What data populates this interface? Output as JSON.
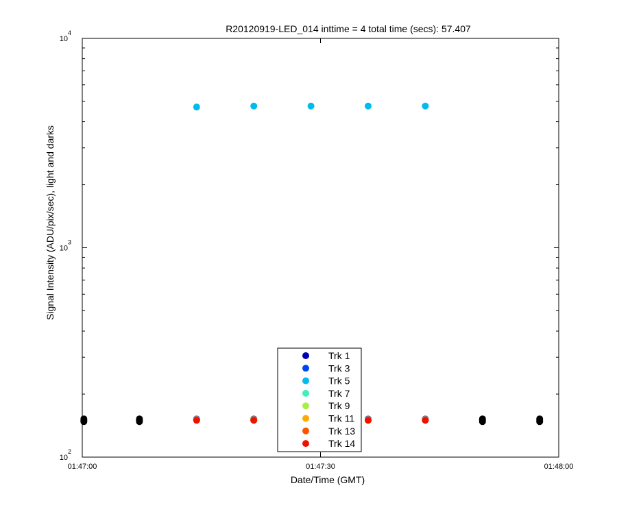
{
  "chart_data": {
    "type": "scatter",
    "title": "R20120919-LED_014 inttime = 4 total time (secs): 57.407",
    "xlabel": "Date/Time (GMT)",
    "ylabel": "Signal Intensity (ADU/pix/sec), light and darks",
    "xscale": "time",
    "yscale": "log",
    "xlim": [
      "01:47:00",
      "01:48:00"
    ],
    "ylim": [
      100,
      10000
    ],
    "x_ticks": [
      "01:47:00",
      "01:47:30",
      "01:48:00"
    ],
    "y_ticks": [
      {
        "base": "10",
        "exp": "2",
        "value": 100
      },
      {
        "base": "10",
        "exp": "3",
        "value": 1000
      },
      {
        "base": "10",
        "exp": "4",
        "value": 10000
      }
    ],
    "grid": false,
    "legend_position": "bottom-center",
    "series": [
      {
        "name": "Trk 1",
        "color": "#0000b8",
        "x": [
          "01:47:14.4",
          "01:47:21.6",
          "01:47:36.0",
          "01:47:43.2"
        ],
        "y": [
          152,
          152,
          152,
          152
        ]
      },
      {
        "name": "Trk 3",
        "color": "#0044ee",
        "x": [
          "01:47:14.4",
          "01:47:21.6",
          "01:47:36.0",
          "01:47:43.2"
        ],
        "y": [
          152,
          152,
          152,
          152
        ]
      },
      {
        "name": "Trk 5",
        "color": "#00bbee",
        "x": [
          "01:47:14.4",
          "01:47:21.6",
          "01:47:28.8",
          "01:47:36.0",
          "01:47:43.2"
        ],
        "y": [
          4700,
          4750,
          4750,
          4750,
          4750
        ]
      },
      {
        "name": "Trk 7",
        "color": "#44eebb",
        "x": [
          "01:47:14.4",
          "01:47:21.6",
          "01:47:36.0",
          "01:47:43.2"
        ],
        "y": [
          151,
          151,
          151,
          151
        ]
      },
      {
        "name": "Trk 9",
        "color": "#aaee44",
        "x": [
          "01:47:14.4",
          "01:47:21.6",
          "01:47:36.0",
          "01:47:43.2"
        ],
        "y": [
          151,
          151,
          151,
          151
        ]
      },
      {
        "name": "Trk 11",
        "color": "#ffaa00",
        "x": [
          "01:47:14.4",
          "01:47:21.6",
          "01:47:36.0",
          "01:47:43.2"
        ],
        "y": [
          151,
          151,
          151,
          151
        ]
      },
      {
        "name": "Trk 13",
        "color": "#ff5500",
        "x": [
          "01:47:14.4",
          "01:47:21.6",
          "01:47:36.0",
          "01:47:43.2"
        ],
        "y": [
          150,
          150,
          150,
          150
        ]
      },
      {
        "name": "Trk 14",
        "color": "#ee1100",
        "x": [
          "01:47:14.4",
          "01:47:21.6",
          "01:47:36.0",
          "01:47:43.2"
        ],
        "y": [
          150,
          150,
          150,
          150
        ]
      }
    ],
    "dark_points": {
      "color": "#000000",
      "x": [
        "01:47:00.2",
        "01:47:07.2",
        "01:47:50.4",
        "01:47:57.6"
      ],
      "y": [
        150,
        150,
        150,
        150
      ]
    }
  }
}
